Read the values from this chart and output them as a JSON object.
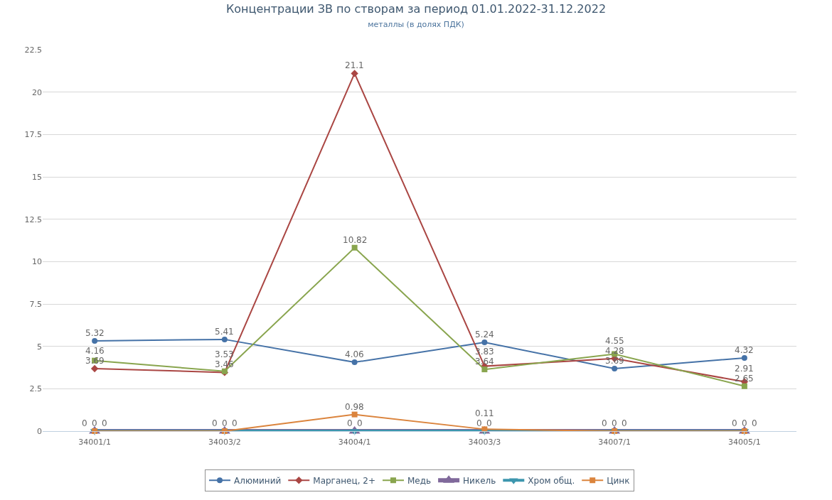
{
  "chart_data": {
    "type": "line",
    "title": "Концентрации ЗВ по створам за период 01.01.2022-31.12.2022",
    "subtitle": "металлы (в долях ПДК)",
    "categories": [
      "34001/1",
      "34003/2",
      "34004/1",
      "34003/3",
      "34007/1",
      "34005/1"
    ],
    "series": [
      {
        "name": "Алюминий",
        "color": "#4572a7",
        "marker": "circle",
        "values": [
          5.32,
          5.41,
          4.06,
          5.24,
          3.69,
          4.32
        ]
      },
      {
        "name": "Марганец, 2+",
        "color": "#aa4643",
        "marker": "diamond",
        "values": [
          3.69,
          3.46,
          21.1,
          3.83,
          4.28,
          2.91
        ]
      },
      {
        "name": "Медь",
        "color": "#89a54e",
        "marker": "square",
        "values": [
          4.16,
          3.53,
          10.82,
          3.64,
          4.55,
          2.65
        ]
      },
      {
        "name": "Никель",
        "color": "#80699b",
        "marker": "triangle",
        "values": [
          0,
          0,
          0,
          0,
          0,
          0
        ]
      },
      {
        "name": "Хром общ.",
        "color": "#3d96ae",
        "marker": "triangle-down",
        "values": [
          0,
          0,
          0,
          0,
          0,
          0
        ]
      },
      {
        "name": "Цинк",
        "color": "#db843d",
        "marker": "square",
        "values": [
          0,
          0,
          0.98,
          0.11,
          0,
          0
        ]
      }
    ],
    "ylim": [
      0,
      22.5
    ],
    "yticks": [
      0,
      2.5,
      5,
      7.5,
      10,
      12.5,
      15,
      17.5,
      20,
      22.5
    ],
    "grid": "y",
    "legend": "bottom",
    "data_labels": true
  }
}
